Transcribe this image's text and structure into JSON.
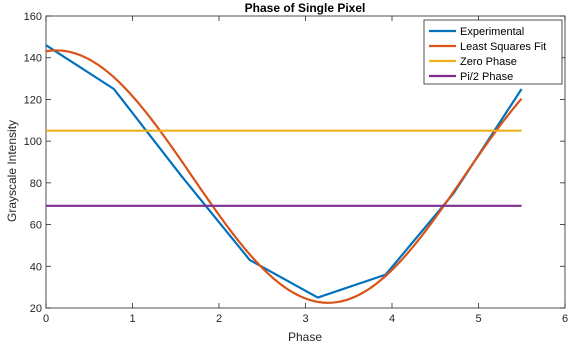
{
  "chart_data": {
    "type": "line",
    "title": "Phase of Single Pixel",
    "xlabel": "Phase",
    "ylabel": "Grayscale Intensity",
    "xlim": [
      0,
      6
    ],
    "ylim": [
      20,
      160
    ],
    "xticks": [
      0,
      1,
      2,
      3,
      4,
      5,
      6
    ],
    "yticks": [
      20,
      40,
      60,
      80,
      100,
      120,
      140,
      160
    ],
    "legend_position": "top-right",
    "grid": false,
    "series": [
      {
        "name": "Experimental",
        "color": "#0072BD",
        "x": [
          0,
          0.785,
          1.571,
          2.356,
          3.142,
          3.927,
          4.712,
          5.498
        ],
        "y": [
          146,
          125,
          83,
          43,
          25,
          36,
          75,
          125
        ]
      },
      {
        "name": "Least Squares Fit",
        "color": "#D95319",
        "model": {
          "type": "cosine",
          "offset": 83,
          "amplitude": 60.5,
          "phase_shift": 0.12
        },
        "x_range": [
          0,
          5.498
        ]
      },
      {
        "name": "Zero Phase",
        "color": "#EDB120",
        "x": [
          0,
          5.498
        ],
        "y": [
          105,
          105
        ]
      },
      {
        "name": "Pi/2 Phase",
        "color": "#7E2F8E",
        "x": [
          0,
          5.498
        ],
        "y": [
          69,
          69
        ]
      }
    ]
  }
}
